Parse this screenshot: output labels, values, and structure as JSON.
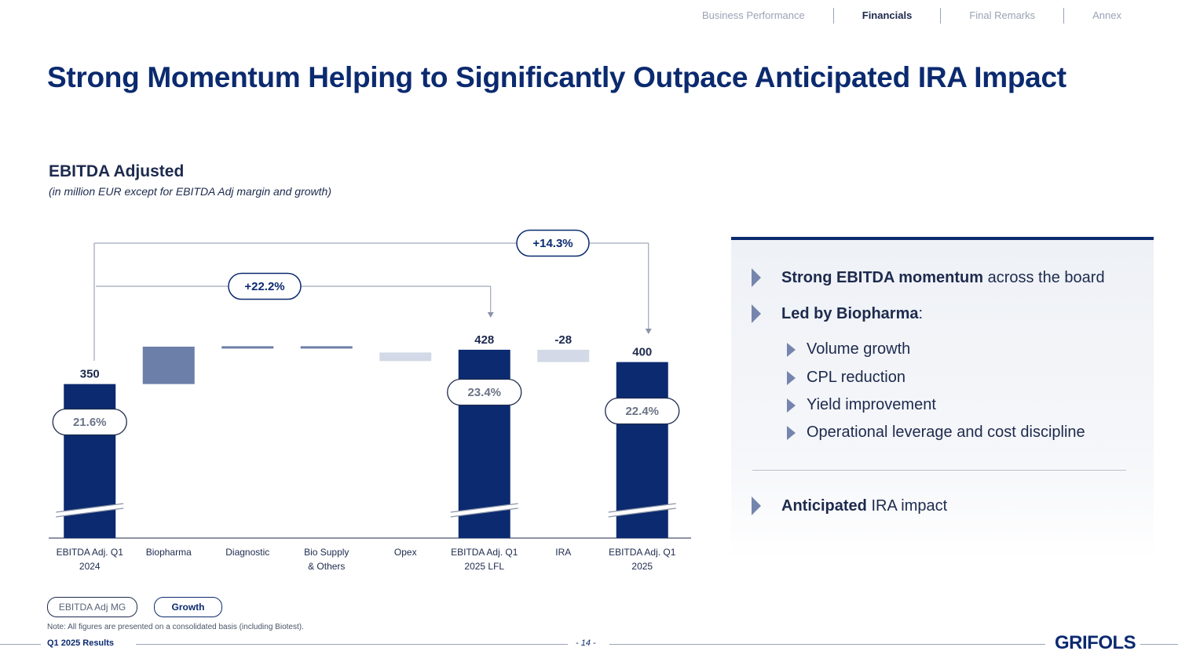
{
  "nav": {
    "items": [
      "Business Performance",
      "Financials",
      "Final Remarks",
      "Annex"
    ],
    "active": "Financials"
  },
  "title": "Strong Momentum Helping to Significantly Outpace Anticipated IRA Impact",
  "chart_header": {
    "title": "EBITDA Adjusted",
    "subtitle": "(in million EUR except for EBITDA Adj margin and growth)"
  },
  "chart_data": {
    "type": "waterfall",
    "unit": "million EUR",
    "categories": [
      "EBITDA Adj. Q1 2024",
      "Biopharma",
      "Diagnostic",
      "Bio Supply & Others",
      "Opex",
      "EBITDA Adj. Q1 2025 LFL",
      "IRA",
      "EBITDA Adj. Q1 2025"
    ],
    "category_lines": [
      [
        "EBITDA Adj. Q1",
        "2024"
      ],
      [
        "Biopharma"
      ],
      [
        "Diagnostic"
      ],
      [
        "Bio Supply",
        "& Others"
      ],
      [
        "Opex"
      ],
      [
        "EBITDA Adj. Q1",
        "2025 LFL"
      ],
      [
        "IRA"
      ],
      [
        "EBITDA Adj. Q1",
        "2025"
      ]
    ],
    "values": [
      350,
      85,
      1,
      0,
      -8,
      428,
      -28,
      400
    ],
    "kinds": [
      "total",
      "increase",
      "increase",
      "increase",
      "decrease",
      "total",
      "decrease",
      "total"
    ],
    "value_labels": [
      "350",
      "",
      "",
      "",
      "",
      "428",
      "-28",
      "400"
    ],
    "ylim": [
      0,
      470
    ],
    "axis_break": true,
    "margins": [
      {
        "category": "EBITDA Adj. Q1 2024",
        "label": "21.6%"
      },
      {
        "category": "EBITDA Adj. Q1 2025 LFL",
        "label": "23.4%"
      },
      {
        "category": "EBITDA Adj. Q1 2025",
        "label": "22.4%"
      }
    ],
    "growth": [
      {
        "from": "EBITDA Adj. Q1 2024",
        "to": "EBITDA Adj. Q1 2025 LFL",
        "label": "+22.2%"
      },
      {
        "from": "EBITDA Adj. Q1 2024",
        "to": "EBITDA Adj. Q1 2025",
        "label": "+14.3%"
      }
    ],
    "colors": {
      "total": "#0b2a6f",
      "biopharma": "#6c7fa8",
      "minor_increase": "#6c7fa8",
      "decrease": "#d3d9e6"
    }
  },
  "legend": {
    "margin_label": "EBITDA Adj MG",
    "growth_label": "Growth"
  },
  "panel": {
    "bullet1_bold": "Strong EBITDA momentum",
    "bullet1_rest": " across the board",
    "bullet2_bold": "Led by Biopharma",
    "bullet2_rest": ":",
    "sub_items": [
      "Volume growth",
      "CPL reduction",
      "Yield improvement",
      "Operational leverage and cost discipline"
    ],
    "bullet3_bold": "Anticipated",
    "bullet3_rest": " IRA impact"
  },
  "footer": {
    "note": "Note: All figures are presented on a consolidated basis (including Biotest).",
    "left": "Q1 2025 Results",
    "page": "- 14 -",
    "logo": "GRIFOLS"
  }
}
